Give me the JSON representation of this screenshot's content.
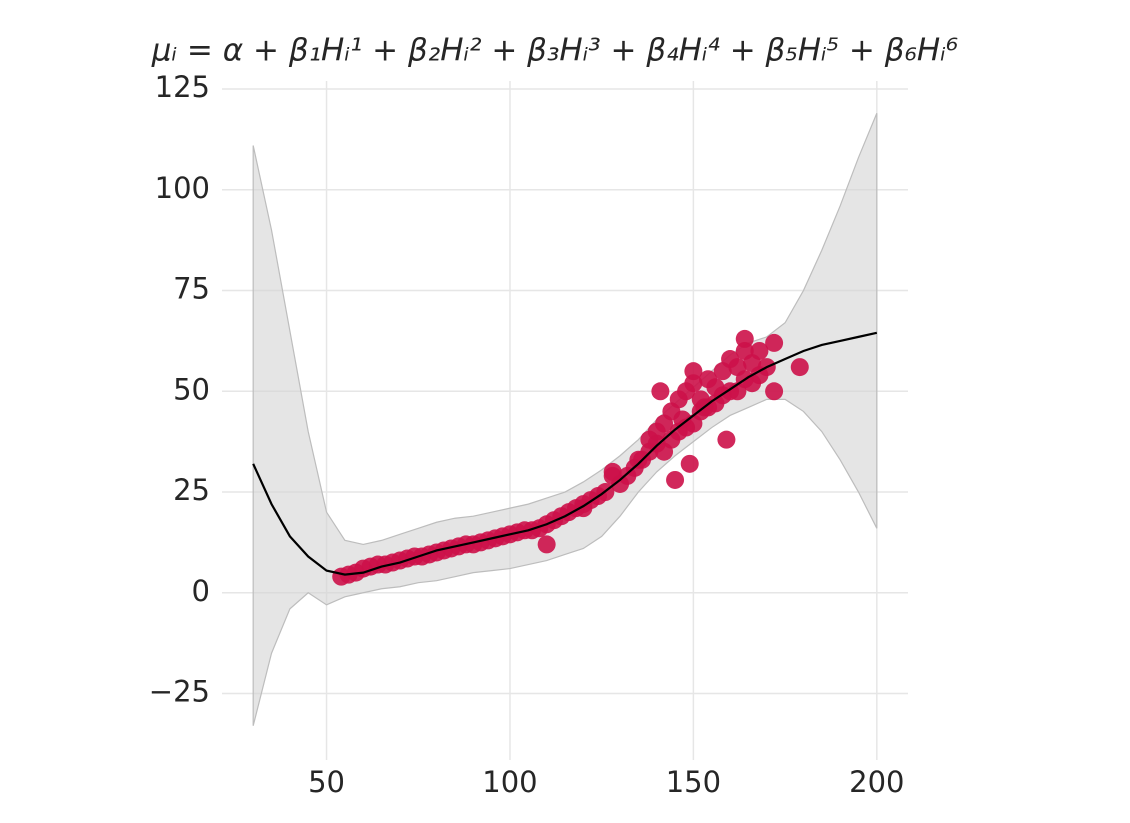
{
  "chart_data": {
    "type": "scatter",
    "title": "μᵢ = α + β₁Hᵢ¹ + β₂Hᵢ² + β₃Hᵢ³ + β₄Hᵢ⁴ + β₅Hᵢ⁵ + β₆Hᵢ⁶",
    "xlim": [
      21.5,
      208.5
    ],
    "ylim": [
      -41.5,
      127
    ],
    "xticks": [
      50,
      100,
      150,
      200
    ],
    "yticks": [
      {
        "value": -25,
        "label": "−25"
      },
      0,
      25,
      50,
      75,
      100,
      125
    ],
    "grid": true,
    "band": {
      "color": "#d3d3d3",
      "x": [
        30,
        35,
        40,
        45,
        50,
        55,
        60,
        65,
        70,
        75,
        80,
        85,
        90,
        95,
        100,
        105,
        110,
        115,
        120,
        125,
        130,
        135,
        140,
        145,
        150,
        155,
        160,
        165,
        170,
        175,
        180,
        185,
        190,
        195,
        200
      ],
      "lower": [
        -33,
        -15,
        -4,
        0,
        -3,
        -1,
        0,
        1,
        1.5,
        2.5,
        3,
        4,
        5,
        5.5,
        6,
        7,
        8,
        9.5,
        11,
        14,
        19,
        25,
        30,
        34,
        37.5,
        41,
        44,
        46,
        48,
        48,
        45,
        40,
        33,
        25,
        16
      ],
      "upper": [
        111,
        90,
        65,
        40,
        20,
        13,
        12,
        13,
        14.5,
        16,
        17.5,
        18.5,
        19,
        20,
        21,
        22,
        23.5,
        25,
        27.5,
        30.5,
        34,
        38,
        43,
        47,
        51,
        55,
        59,
        62,
        63.5,
        67,
        75,
        85,
        96,
        108,
        119
      ]
    },
    "line": {
      "color": "#000000",
      "x": [
        30,
        35,
        40,
        45,
        50,
        55,
        60,
        65,
        70,
        75,
        80,
        85,
        90,
        95,
        100,
        105,
        110,
        115,
        120,
        125,
        130,
        135,
        140,
        145,
        150,
        155,
        160,
        165,
        170,
        175,
        180,
        185,
        190,
        195,
        200
      ],
      "values": [
        32,
        22,
        14,
        9,
        5.5,
        4.5,
        5,
        6.5,
        7.5,
        9,
        10.5,
        11.5,
        12.5,
        13.5,
        14.5,
        15.5,
        17,
        19,
        21.5,
        24.5,
        28,
        32,
        36.5,
        40.5,
        44,
        47.5,
        50.5,
        53.5,
        56,
        58,
        60,
        61.5,
        62.5,
        63.5,
        64.5
      ]
    },
    "points": {
      "color": "#cc1149",
      "x": [
        54,
        56,
        58,
        60,
        62,
        64,
        66,
        68,
        70,
        72,
        74,
        76,
        78,
        80,
        82,
        84,
        86,
        88,
        90,
        92,
        94,
        96,
        98,
        100,
        102,
        104,
        106,
        108,
        110,
        112,
        114,
        116,
        118,
        120,
        122,
        124,
        126,
        128,
        130,
        132,
        134,
        136,
        138,
        140,
        140,
        142,
        142,
        144,
        144,
        146,
        146,
        148,
        148,
        150,
        150,
        152,
        152,
        154,
        154,
        156,
        156,
        158,
        158,
        160,
        160,
        162,
        162,
        164,
        164,
        166,
        166,
        168,
        168,
        170,
        172,
        128,
        138,
        141,
        149,
        153,
        159,
        164,
        179,
        172,
        150,
        145,
        110,
        120,
        135,
        147
      ],
      "y": [
        4,
        4.5,
        5,
        6,
        6.5,
        7,
        7,
        7.5,
        8,
        8.5,
        9,
        9,
        9.5,
        10,
        10.5,
        11,
        11.5,
        12,
        12,
        12.5,
        13,
        13.5,
        14,
        14.5,
        15,
        15.5,
        15.5,
        16,
        12,
        18,
        19,
        20,
        21,
        22,
        23,
        24,
        25,
        29,
        27,
        29,
        31,
        33,
        35,
        37,
        40,
        35,
        42,
        38,
        45,
        40,
        48,
        41,
        50,
        42,
        52,
        45,
        48,
        46,
        53,
        47,
        51,
        49,
        55,
        50,
        58,
        50,
        56,
        53,
        60,
        52,
        57,
        54,
        60,
        56,
        62,
        30,
        38,
        50,
        32,
        46,
        38,
        63,
        56,
        50,
        55,
        28,
        17,
        21,
        33,
        43
      ]
    }
  }
}
